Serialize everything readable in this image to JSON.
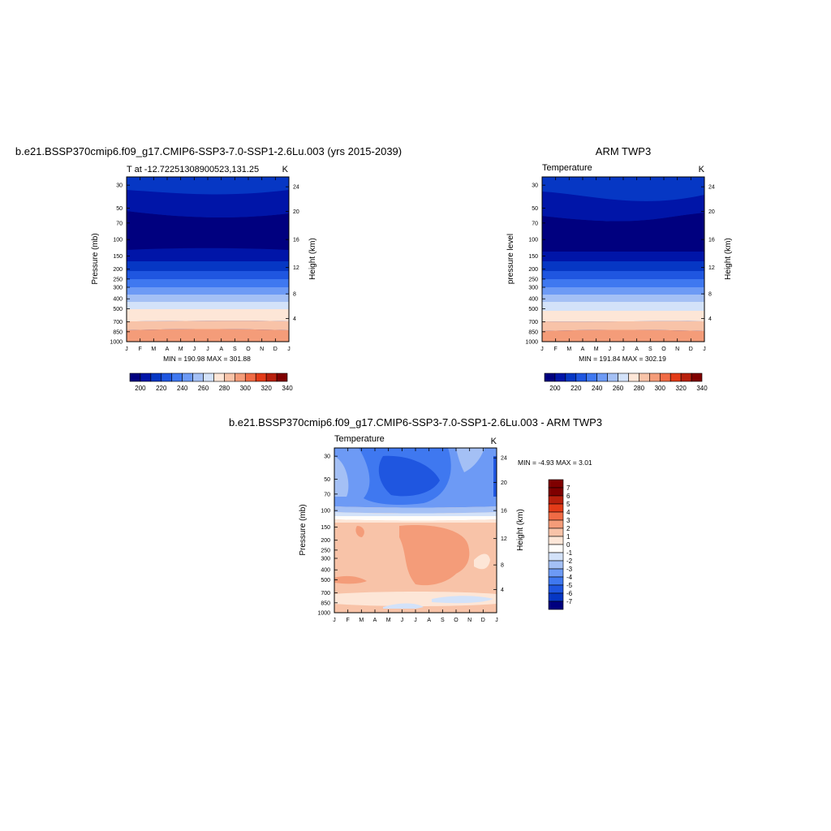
{
  "chart_data": [
    {
      "type": "heatmap",
      "title": "b.e21.BSSP370cmip6.f09_g17.CMIP6-SSP3-7.0-SSP1-2.6Lu.003 (yrs 2015-2039)",
      "subtitle_left": "T at -12.72251308900523,131.25",
      "subtitle_right": "K",
      "xlabel": "",
      "ylabel": "Pressure (mb)",
      "ylabel_right": "Height (km)",
      "x_ticks": [
        "J",
        "F",
        "M",
        "A",
        "M",
        "J",
        "J",
        "A",
        "S",
        "O",
        "N",
        "D",
        "J"
      ],
      "pressure_ticks": [
        "30",
        "50",
        "70",
        "100",
        "150",
        "200",
        "250",
        "300",
        "400",
        "500",
        "700",
        "850",
        "1000"
      ],
      "height_ticks": [
        "4",
        "8",
        "12",
        "16",
        "20",
        "24"
      ],
      "minmax": "MIN = 190.98 MAX = 301.88",
      "colorbar_ticks": [
        "200",
        "220",
        "240",
        "260",
        "280",
        "300",
        "320",
        "340"
      ]
    },
    {
      "type": "heatmap",
      "title": "ARM TWP3",
      "subtitle_left": "Temperature",
      "subtitle_right": "K",
      "xlabel": "",
      "ylabel": "pressure level",
      "ylabel_right": "Height (km)",
      "x_ticks": [
        "J",
        "F",
        "M",
        "A",
        "M",
        "J",
        "J",
        "A",
        "S",
        "O",
        "N",
        "D",
        "J"
      ],
      "pressure_ticks": [
        "30",
        "50",
        "70",
        "100",
        "150",
        "200",
        "250",
        "300",
        "400",
        "500",
        "700",
        "850",
        "1000"
      ],
      "height_ticks": [
        "4",
        "8",
        "12",
        "16",
        "20",
        "24"
      ],
      "minmax": "MIN = 191.84 MAX = 302.19",
      "colorbar_ticks": [
        "200",
        "220",
        "240",
        "260",
        "280",
        "300",
        "320",
        "340"
      ]
    },
    {
      "type": "heatmap",
      "title": "b.e21.BSSP370cmip6.f09_g17.CMIP6-SSP3-7.0-SSP1-2.6Lu.003 - ARM TWP3",
      "subtitle_left": "Temperature",
      "subtitle_right": "K",
      "xlabel": "",
      "ylabel": "Pressure (mb)",
      "ylabel_right": "Height (km)",
      "x_ticks": [
        "J",
        "F",
        "M",
        "A",
        "M",
        "J",
        "J",
        "A",
        "S",
        "O",
        "N",
        "D",
        "J"
      ],
      "pressure_ticks": [
        "30",
        "50",
        "70",
        "100",
        "150",
        "200",
        "250",
        "300",
        "400",
        "500",
        "700",
        "850",
        "1000"
      ],
      "height_ticks": [
        "4",
        "8",
        "12",
        "16",
        "20",
        "24"
      ],
      "minmax": "MIN =  -4.93 MAX =   3.01",
      "colorbar_ticks": [
        "7",
        "6",
        "5",
        "4",
        "3",
        "2",
        "1",
        "0",
        "-1",
        "-2",
        "-3",
        "-4",
        "-5",
        "-6",
        "-7"
      ]
    }
  ],
  "palettes": {
    "temperature": [
      "#00007f",
      "#0015a8",
      "#0637c4",
      "#1f56e0",
      "#3f78f0",
      "#6d9af5",
      "#a4c0f5",
      "#d3e2f9",
      "#fde6d7",
      "#f8c3a8",
      "#f49c79",
      "#f06b45",
      "#e33b18",
      "#b8200d",
      "#7f0000"
    ],
    "difference": [
      "#7f0000",
      "#b8200d",
      "#e33b18",
      "#f06b45",
      "#f49c79",
      "#f8c3a8",
      "#fde6d7",
      "#fffdfa",
      "#d3e2f9",
      "#a4c0f5",
      "#6d9af5",
      "#3f78f0",
      "#1f56e0",
      "#0637c4",
      "#00007f"
    ]
  }
}
